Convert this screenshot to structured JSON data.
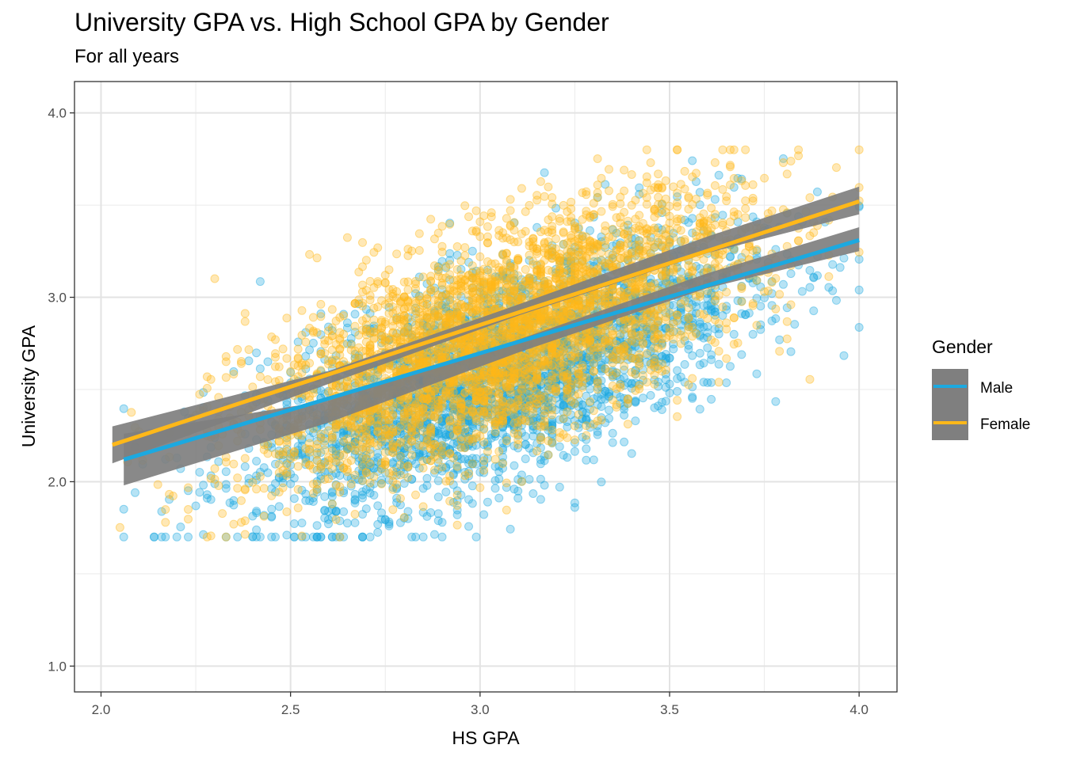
{
  "chart_data": {
    "type": "scatter",
    "title": "University GPA vs. High School GPA by Gender",
    "subtitle": "For all years",
    "xlabel": "HS GPA",
    "ylabel": "University GPA",
    "xlim": [
      1.93,
      4.1
    ],
    "ylim": [
      0.86,
      4.17
    ],
    "x_ticks": [
      "2.0",
      "2.5",
      "3.0",
      "3.5",
      "4.0"
    ],
    "y_ticks": [
      "1.0",
      "2.0",
      "3.0",
      "4.0"
    ],
    "grid": true,
    "legend": {
      "title": "Gender",
      "placement": "right",
      "entries": [
        "Male",
        "Female"
      ]
    },
    "colors": {
      "Male": "#1ca9e0",
      "Female": "#ffb819",
      "confidence_band": "#7f7f7f"
    },
    "series": [
      {
        "name": "Male",
        "point_count": 3000,
        "x_range": [
          2.06,
          4.0
        ],
        "point_model": {
          "intercept": 0.2,
          "slope": 0.78,
          "sd": 0.28
        },
        "fit_line": {
          "x": [
            2.06,
            4.0
          ],
          "y": [
            2.12,
            3.31
          ]
        },
        "confidence_band": {
          "x": [
            2.06,
            2.6,
            3.1,
            3.6,
            4.0
          ],
          "lower": [
            1.98,
            2.32,
            2.7,
            3.05,
            3.25
          ],
          "upper": [
            2.26,
            2.44,
            2.77,
            3.13,
            3.38
          ]
        }
      },
      {
        "name": "Female",
        "point_count": 3500,
        "x_range": [
          2.03,
          4.0
        ],
        "point_model": {
          "intercept": 0.46,
          "slope": 0.76,
          "sd": 0.28
        },
        "fit_line": {
          "x": [
            2.03,
            4.0
          ],
          "y": [
            2.2,
            3.52
          ]
        },
        "confidence_band": {
          "x": [
            2.03,
            2.6,
            3.1,
            3.6,
            4.0
          ],
          "lower": [
            2.1,
            2.53,
            2.9,
            3.24,
            3.45
          ],
          "upper": [
            2.3,
            2.6,
            2.96,
            3.33,
            3.6
          ]
        }
      }
    ]
  }
}
